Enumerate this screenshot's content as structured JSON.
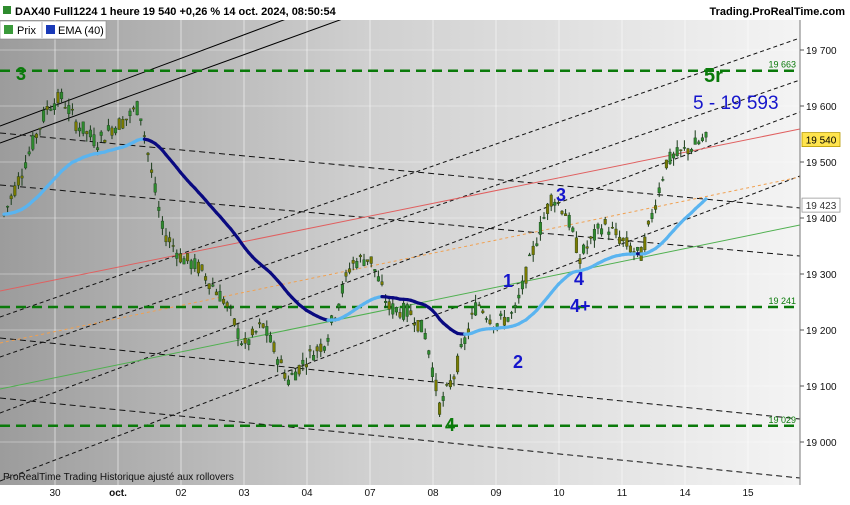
{
  "header": {
    "title": "DAX40 Full1224 1 heure 19 540 +0,26 % 14 oct. 2024, 08:50:54",
    "brand": "Trading.ProRealTime.com",
    "legend_price": "Prix",
    "legend_ema": "EMA (40)"
  },
  "footer": {
    "note": "ProRealTime Trading  Historique ajusté aux rollovers"
  },
  "annotations": {
    "wave3_top": "3",
    "wave4_bottom": "4",
    "wave1": "1",
    "wave2": "2",
    "wave3": "3",
    "wave4": "4",
    "wave4plus": "4+",
    "wave5r": "5r",
    "target": "5 - 19 593"
  },
  "colors": {
    "price_up": "#2e8b2e",
    "price_down": "#7a7a00",
    "ema_dark": "#0a0a80",
    "ema_light": "#5ab4f0",
    "level_line": "#0a7a0a",
    "red_line": "#e06060",
    "orange_line": "#f0a050",
    "green_line": "#50b050",
    "label_blue": "#1515cc",
    "label_green": "#0a7a0a",
    "current_price_bg": "#ffe44d"
  },
  "chart_data": {
    "type": "candlestick",
    "title": "DAX40 Full1224 1 heure",
    "instrument": "DAX40 Full1224",
    "timeframe": "1 heure",
    "last_price": 19540,
    "change_pct": 0.26,
    "x_tick_labels": [
      "30",
      "oct.",
      "02",
      "03",
      "04",
      "07",
      "08",
      "09",
      "10",
      "11",
      "14",
      "15"
    ],
    "y_ticks": [
      19000,
      19100,
      19200,
      19300,
      19400,
      19500,
      19600,
      19700
    ],
    "y_tick_labels": [
      "19 000",
      "19 100",
      "19 200",
      "19 300",
      "19 400",
      "19 500",
      "19 600",
      "19 700"
    ],
    "ylim": [
      18960,
      19780
    ],
    "horizontal_levels": [
      {
        "value": 19663,
        "label": "19 663"
      },
      {
        "value": 19241,
        "label": "19 241"
      },
      {
        "value": 19029,
        "label": "19 029"
      }
    ],
    "price_tags": [
      {
        "value": 19540,
        "label": "19 540"
      },
      {
        "value": 19423,
        "label": "19 423"
      }
    ],
    "grid": true,
    "price_points": [
      [
        "30",
        19405
      ],
      [
        "30",
        19600
      ],
      [
        "30",
        19615
      ],
      [
        "30",
        19570
      ],
      [
        "oct.",
        19535
      ],
      [
        "oct.",
        19560
      ],
      [
        "oct.",
        19575
      ],
      [
        "oct.",
        19600
      ],
      [
        "02",
        19380
      ],
      [
        "02",
        19330
      ],
      [
        "02",
        19310
      ],
      [
        "03",
        19250
      ],
      [
        "03",
        19170
      ],
      [
        "03",
        19210
      ],
      [
        "04",
        19110
      ],
      [
        "04",
        19150
      ],
      [
        "04",
        19180
      ],
      [
        "07",
        19320
      ],
      [
        "07",
        19330
      ],
      [
        "07",
        19240
      ],
      [
        "08",
        19230
      ],
      [
        "08",
        19190
      ],
      [
        "08",
        19060
      ],
      [
        "08",
        19120
      ],
      [
        "09",
        19250
      ],
      [
        "09",
        19210
      ],
      [
        "09",
        19230
      ],
      [
        "10",
        19370
      ],
      [
        "10",
        19440
      ],
      [
        "10",
        19410
      ],
      [
        "10",
        19330
      ],
      [
        "11",
        19390
      ],
      [
        "11",
        19360
      ],
      [
        "11",
        19330
      ],
      [
        "14",
        19500
      ],
      [
        "14",
        19520
      ],
      [
        "14",
        19540
      ]
    ]
  }
}
